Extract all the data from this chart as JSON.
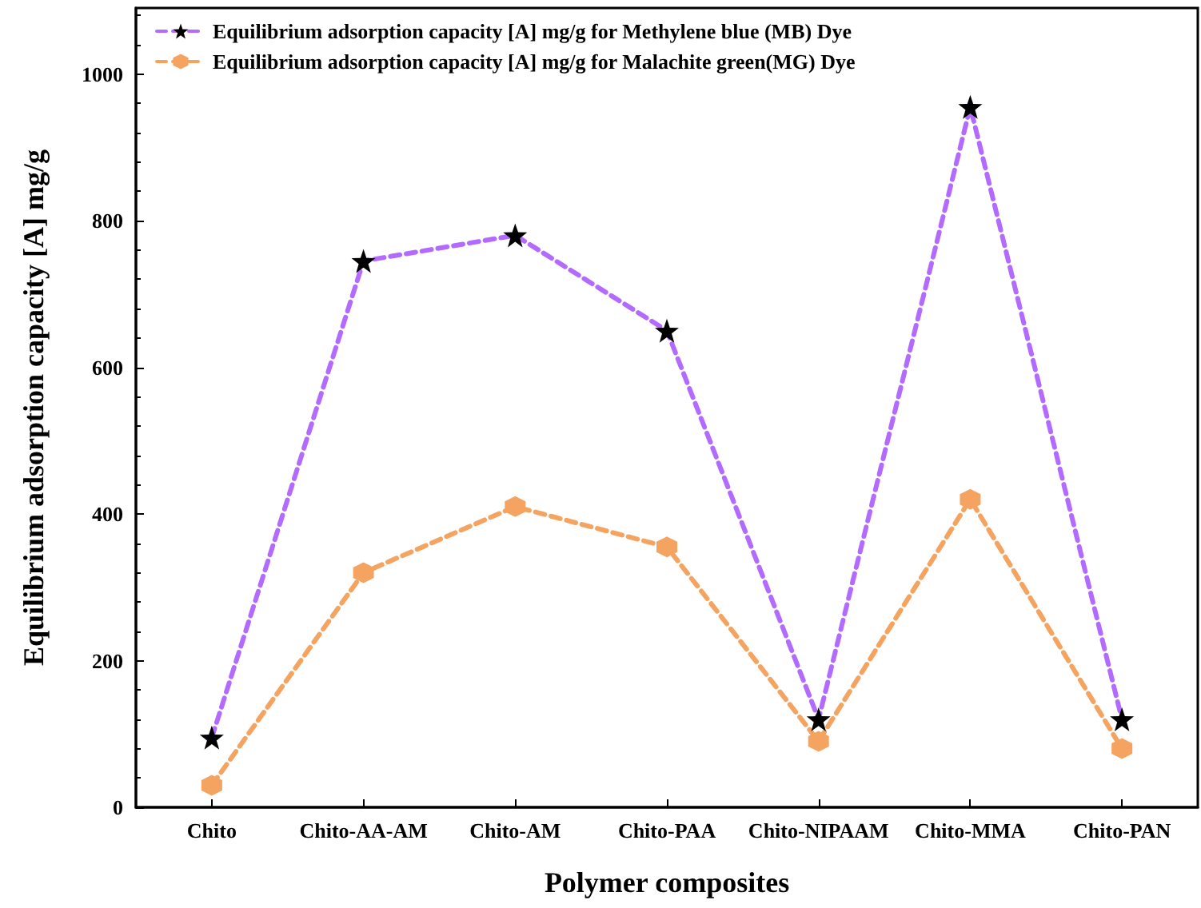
{
  "chart_data": {
    "type": "line",
    "xlabel": "Polymer composites",
    "ylabel": "Equilibrium adsorption capacity [A] mg/g",
    "categories": [
      "Chito",
      "Chito-AA-AM",
      "Chito-AM",
      "Chito-PAA",
      "Chito-NIPAAM",
      "Chito-MMA",
      "Chito-PAN"
    ],
    "series": [
      {
        "name": "Equilibrium adsorption capacity [A] mg/g for Methylene blue (MB) Dye",
        "color": "#b36bff",
        "marker": "star",
        "line_style": "dashed",
        "values": [
          95,
          745,
          780,
          650,
          120,
          955,
          120
        ]
      },
      {
        "name": "Equilibrium adsorption capacity [A] mg/g for Malachite green(MG) Dye",
        "color": "#f4a460",
        "marker": "circle",
        "line_style": "dashed",
        "values": [
          30,
          320,
          410,
          355,
          90,
          420,
          80
        ]
      }
    ],
    "ylim": [
      0,
      1090
    ],
    "yticks": [
      0,
      200,
      400,
      600,
      800,
      1000
    ],
    "grid": false,
    "legend": "top left"
  }
}
